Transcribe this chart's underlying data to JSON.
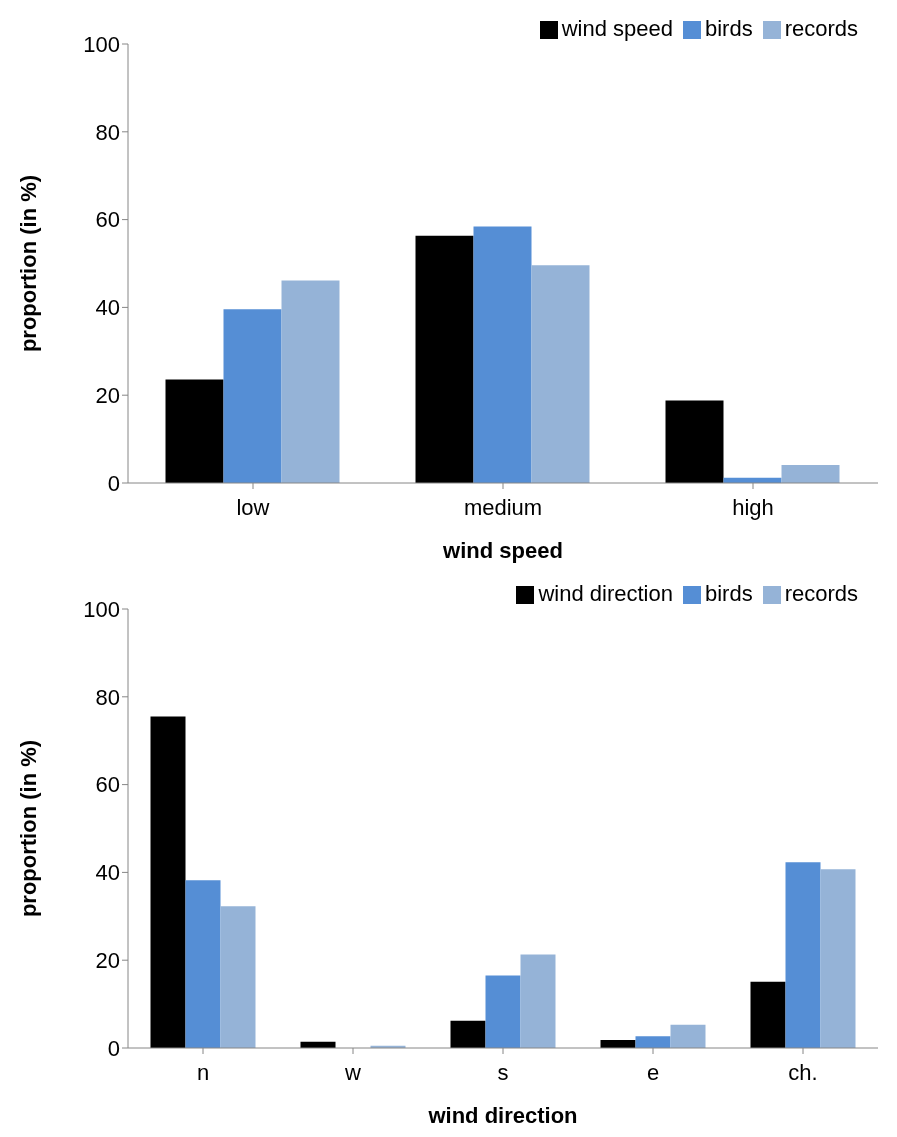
{
  "chart_data": [
    {
      "type": "bar",
      "xlabel": "wind speed",
      "ylabel": "proportion (in %)",
      "categories": [
        "low",
        "medium",
        "high"
      ],
      "series": [
        {
          "name": "wind speed",
          "color": "#000000",
          "values": [
            23.6,
            56.3,
            18.8
          ]
        },
        {
          "name": "birds",
          "color": "#558ed5",
          "values": [
            39.6,
            58.4,
            1.2
          ]
        },
        {
          "name": "records",
          "color": "#95b3d7",
          "values": [
            46.1,
            49.6,
            4.1
          ]
        }
      ],
      "ylim": [
        0,
        100
      ],
      "yticks": [
        0,
        20,
        40,
        60,
        80,
        100
      ],
      "grid": false,
      "legend": "top right"
    },
    {
      "type": "bar",
      "xlabel": "wind direction",
      "ylabel": "proportion (in %)",
      "categories": [
        "n",
        "w",
        "s",
        "e",
        "ch."
      ],
      "series": [
        {
          "name": "wind direction",
          "color": "#000000",
          "values": [
            75.5,
            1.4,
            6.2,
            1.8,
            15.1
          ]
        },
        {
          "name": "birds",
          "color": "#558ed5",
          "values": [
            38.2,
            0,
            16.5,
            2.7,
            42.3
          ]
        },
        {
          "name": "records",
          "color": "#95b3d7",
          "values": [
            32.3,
            0.5,
            21.3,
            5.3,
            40.7
          ]
        }
      ],
      "ylim": [
        0,
        100
      ],
      "yticks": [
        0,
        20,
        40,
        60,
        80,
        100
      ],
      "grid": false,
      "legend": "top right"
    }
  ]
}
